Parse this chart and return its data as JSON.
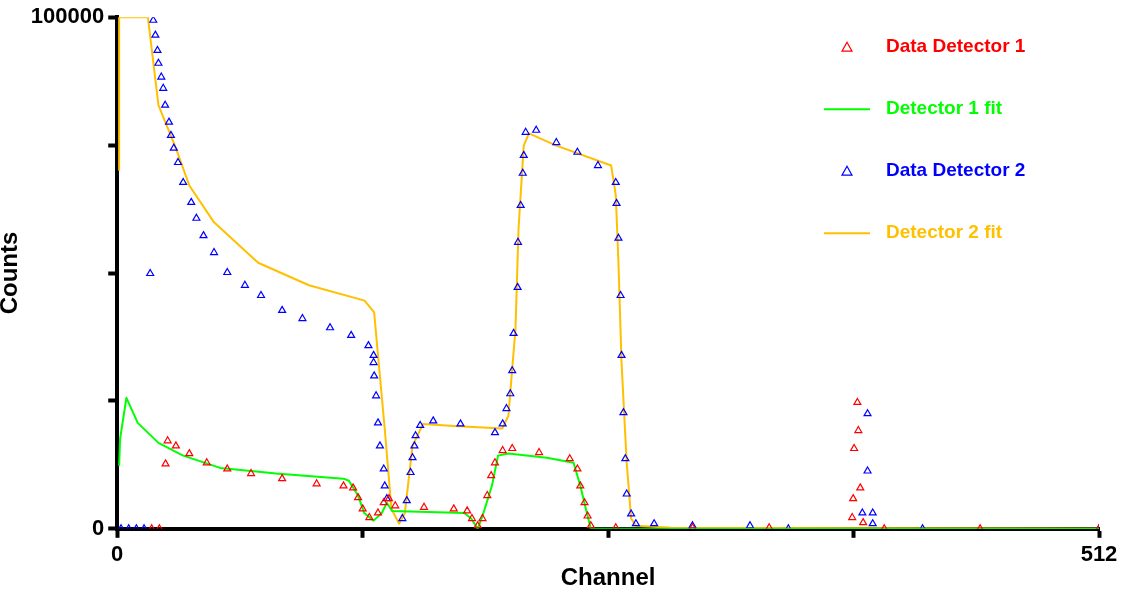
{
  "chart_data": {
    "type": "scatter",
    "xlabel": "Channel",
    "ylabel": "Counts",
    "xlim": [
      0,
      512
    ],
    "xticks": [
      0,
      {
        "value": 128,
        "label": null
      },
      {
        "value": 256,
        "label": null
      },
      {
        "value": 384,
        "label": null
      },
      512
    ],
    "ylim": [
      0,
      100000
    ],
    "yticks": [
      0,
      {
        "value": 25000,
        "label": null
      },
      {
        "value": 50000,
        "label": null
      },
      {
        "value": 75000,
        "label": null
      },
      100000
    ],
    "grid": false,
    "legend": "top right",
    "series": [
      {
        "name": "Data Detector 1",
        "type": "scatter",
        "marker": "triangle",
        "color": "#ff0000",
        "x": [
          18,
          22,
          25.2,
          26.3,
          30.6,
          37.6,
          46.7,
          57.4,
          69.8,
          86,
          104,
          118,
          123,
          125.6,
          128,
          131.5,
          136,
          139,
          141.7,
          145,
          160,
          175.5,
          182.5,
          185,
          188,
          190.5,
          193,
          195,
          197,
          201,
          206,
          220,
          236,
          240,
          241.5,
          243.7,
          245.3,
          247,
          260,
          300,
          340,
          383.3,
          383.8,
          384.3,
          386,
          386.5,
          387.5,
          389,
          400,
          450,
          512
        ],
        "values": [
          0,
          0,
          12700,
          17200,
          16200,
          14700,
          12900,
          11700,
          10800,
          9800,
          8800,
          8400,
          8000,
          6100,
          3900,
          2200,
          3100,
          5100,
          5900,
          4500,
          4200,
          3900,
          3500,
          2000,
          600,
          2000,
          6500,
          10400,
          12900,
          15300,
          15700,
          14900,
          13700,
          11700,
          8400,
          5100,
          2500,
          600,
          200,
          200,
          200,
          2200,
          5900,
          15700,
          24700,
          19200,
          8000,
          1200,
          0,
          0,
          0
        ]
      },
      {
        "name": "Detector 1 fit",
        "type": "line",
        "marker": "none",
        "color": "#00ff00",
        "x": [
          1,
          1.5,
          4.8,
          10.7,
          21.5,
          34.4,
          53.7,
          82.7,
          118,
          120.8,
          125.6,
          128.8,
          133.7,
          138,
          140.6,
          143.3,
          181,
          184.6,
          188,
          190.5,
          195.4,
          198.6,
          204,
          224,
          238,
          241.5,
          245.3,
          247,
          512
        ],
        "values": [
          12300,
          17600,
          25600,
          20700,
          16800,
          14300,
          11900,
          10800,
          9800,
          9400,
          6500,
          3100,
          1600,
          3100,
          5100,
          3500,
          3100,
          2000,
          0,
          2500,
          8400,
          14300,
          14700,
          13900,
          12900,
          8400,
          2500,
          0,
          0
        ]
      },
      {
        "name": "Data Detector 2",
        "type": "scatter",
        "marker": "triangle",
        "color": "#0000ff",
        "x": [
          2,
          6,
          10,
          14,
          17.2,
          18.8,
          19.9,
          21,
          21.5,
          23,
          24,
          25,
          27,
          28,
          29.5,
          31.7,
          34.4,
          38.6,
          41.3,
          45,
          50.5,
          57.4,
          66.6,
          75,
          86,
          96.6,
          111,
          122,
          131,
          133.7,
          133.7,
          134,
          135,
          136,
          137,
          139,
          139.5,
          140.6,
          148.7,
          151,
          153,
          154,
          155,
          155.6,
          158,
          164.8,
          179,
          197,
          201,
          203,
          205,
          206,
          206.7,
          208.8,
          209,
          210.4,
          211.5,
          212,
          213,
          218.5,
          229,
          240,
          250.7,
          260,
          260.4,
          261.4,
          262.5,
          263,
          264,
          265,
          265.7,
          268,
          270.5,
          280,
          300,
          330,
          350,
          388.6,
          391.3,
          391.3,
          394,
          394,
          420,
          512
        ],
        "values": [
          0,
          0,
          0,
          0,
          49900,
          99400,
          96500,
          93500,
          91000,
          88300,
          86100,
          82800,
          79500,
          76900,
          74400,
          71600,
          67700,
          63800,
          60700,
          57300,
          54000,
          50100,
          47600,
          45600,
          42700,
          41100,
          39300,
          37800,
          35800,
          33900,
          32500,
          29900,
          26000,
          20700,
          16200,
          11700,
          8400,
          5900,
          2000,
          5500,
          11000,
          13900,
          16200,
          18200,
          20200,
          21100,
          20500,
          18800,
          20500,
          23500,
          26400,
          30900,
          38200,
          47200,
          56000,
          63200,
          69500,
          73000,
          77500,
          77900,
          75500,
          73600,
          71000,
          67700,
          63600,
          56800,
          45600,
          33900,
          22700,
          13700,
          6800,
          2900,
          1000,
          1000,
          600,
          600,
          0,
          3100,
          22500,
          11300,
          3100,
          1000,
          0,
          0
        ]
      },
      {
        "name": "Detector 2 fit",
        "type": "line",
        "marker": "none",
        "color": "#ffc000",
        "x": [
          1,
          1,
          16,
          21.5,
          30.6,
          37.6,
          50.5,
          73.5,
          100,
          129,
          134,
          136,
          139.5,
          143,
          147,
          150,
          154,
          159.5,
          175.5,
          200.8,
          204,
          207.7,
          209.3,
          212,
          214.7,
          229,
          257.6,
          260,
          261.4,
          263,
          265.7,
          268,
          270.5,
          289,
          512
        ],
        "values": [
          70000,
          100000,
          100000,
          82800,
          74400,
          67100,
          59900,
          52000,
          47600,
          44600,
          42300,
          33900,
          19600,
          3900,
          1000,
          3100,
          16200,
          20500,
          20100,
          19600,
          22100,
          39100,
          58700,
          74900,
          77300,
          74900,
          71000,
          65200,
          52000,
          32500,
          12900,
          2000,
          600,
          200,
          0
        ]
      }
    ]
  }
}
